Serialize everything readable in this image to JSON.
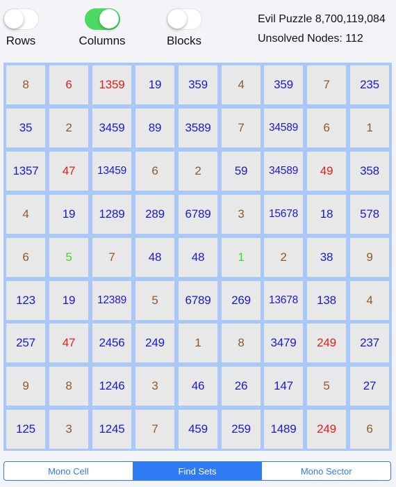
{
  "toggles": [
    {
      "label": "Rows",
      "on": false
    },
    {
      "label": "Columns",
      "on": true
    },
    {
      "label": "Blocks",
      "on": false
    }
  ],
  "puzzle_title": "Evil Puzzle 8,700,119,084",
  "unsolved_nodes": "Unsolved Nodes: 112",
  "colors": {
    "brown": "#8b5a2b",
    "red": "#e0201b",
    "blue": "#1a1acc",
    "green": "#3fd62a"
  },
  "grid": [
    [
      {
        "v": "8",
        "c": "brown"
      },
      {
        "v": "6",
        "c": "red"
      },
      {
        "v": "1359",
        "c": "red"
      },
      {
        "v": "19",
        "c": "blue"
      },
      {
        "v": "359",
        "c": "blue"
      },
      {
        "v": "4",
        "c": "brown"
      },
      {
        "v": "359",
        "c": "blue"
      },
      {
        "v": "7",
        "c": "brown"
      },
      {
        "v": "235",
        "c": "blue"
      }
    ],
    [
      {
        "v": "35",
        "c": "blue"
      },
      {
        "v": "2",
        "c": "brown"
      },
      {
        "v": "3459",
        "c": "blue"
      },
      {
        "v": "89",
        "c": "blue"
      },
      {
        "v": "3589",
        "c": "blue"
      },
      {
        "v": "7",
        "c": "brown"
      },
      {
        "v": "34589",
        "c": "blue"
      },
      {
        "v": "6",
        "c": "brown"
      },
      {
        "v": "1",
        "c": "brown"
      }
    ],
    [
      {
        "v": "1357",
        "c": "blue"
      },
      {
        "v": "47",
        "c": "red"
      },
      {
        "v": "13459",
        "c": "blue"
      },
      {
        "v": "6",
        "c": "brown"
      },
      {
        "v": "2",
        "c": "brown"
      },
      {
        "v": "59",
        "c": "blue"
      },
      {
        "v": "34589",
        "c": "blue"
      },
      {
        "v": "49",
        "c": "red"
      },
      {
        "v": "358",
        "c": "blue"
      }
    ],
    [
      {
        "v": "4",
        "c": "brown"
      },
      {
        "v": "19",
        "c": "blue"
      },
      {
        "v": "1289",
        "c": "blue"
      },
      {
        "v": "289",
        "c": "blue"
      },
      {
        "v": "6789",
        "c": "blue"
      },
      {
        "v": "3",
        "c": "brown"
      },
      {
        "v": "15678",
        "c": "blue"
      },
      {
        "v": "18",
        "c": "blue"
      },
      {
        "v": "578",
        "c": "blue"
      }
    ],
    [
      {
        "v": "6",
        "c": "brown"
      },
      {
        "v": "5",
        "c": "green"
      },
      {
        "v": "7",
        "c": "brown"
      },
      {
        "v": "48",
        "c": "blue"
      },
      {
        "v": "48",
        "c": "blue"
      },
      {
        "v": "1",
        "c": "green"
      },
      {
        "v": "2",
        "c": "brown"
      },
      {
        "v": "38",
        "c": "blue"
      },
      {
        "v": "9",
        "c": "brown"
      }
    ],
    [
      {
        "v": "123",
        "c": "blue"
      },
      {
        "v": "19",
        "c": "blue"
      },
      {
        "v": "12389",
        "c": "blue"
      },
      {
        "v": "5",
        "c": "brown"
      },
      {
        "v": "6789",
        "c": "blue"
      },
      {
        "v": "269",
        "c": "blue"
      },
      {
        "v": "13678",
        "c": "blue"
      },
      {
        "v": "138",
        "c": "blue"
      },
      {
        "v": "4",
        "c": "brown"
      }
    ],
    [
      {
        "v": "257",
        "c": "blue"
      },
      {
        "v": "47",
        "c": "red"
      },
      {
        "v": "2456",
        "c": "blue"
      },
      {
        "v": "249",
        "c": "blue"
      },
      {
        "v": "1",
        "c": "brown"
      },
      {
        "v": "8",
        "c": "brown"
      },
      {
        "v": "3479",
        "c": "blue"
      },
      {
        "v": "249",
        "c": "red"
      },
      {
        "v": "237",
        "c": "blue"
      }
    ],
    [
      {
        "v": "9",
        "c": "brown"
      },
      {
        "v": "8",
        "c": "brown"
      },
      {
        "v": "1246",
        "c": "blue"
      },
      {
        "v": "3",
        "c": "brown"
      },
      {
        "v": "46",
        "c": "blue"
      },
      {
        "v": "26",
        "c": "blue"
      },
      {
        "v": "147",
        "c": "blue"
      },
      {
        "v": "5",
        "c": "brown"
      },
      {
        "v": "27",
        "c": "blue"
      }
    ],
    [
      {
        "v": "125",
        "c": "blue"
      },
      {
        "v": "3",
        "c": "brown"
      },
      {
        "v": "1245",
        "c": "blue"
      },
      {
        "v": "7",
        "c": "brown"
      },
      {
        "v": "459",
        "c": "blue"
      },
      {
        "v": "259",
        "c": "blue"
      },
      {
        "v": "1489",
        "c": "blue"
      },
      {
        "v": "249",
        "c": "red"
      },
      {
        "v": "6",
        "c": "brown"
      }
    ]
  ],
  "tabs": [
    {
      "label": "Mono Cell",
      "selected": false
    },
    {
      "label": "Find Sets",
      "selected": true
    },
    {
      "label": "Mono Sector",
      "selected": false
    }
  ]
}
